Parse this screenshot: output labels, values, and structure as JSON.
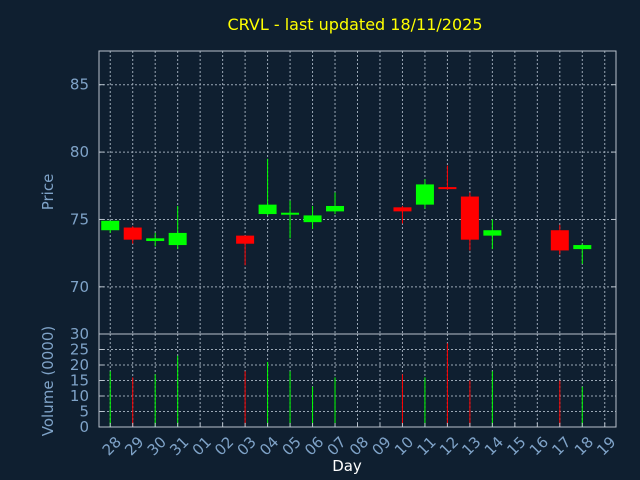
{
  "chart_data": {
    "type": "candlestick",
    "title": "CRVL - last updated 18/11/2025",
    "xlabel": "Day",
    "colors": {
      "background": "#0f1f30",
      "up": "#00ff00",
      "down": "#ff0000",
      "title": "#ffff00",
      "axis_text": "#7fa3c8"
    },
    "x_ticks": [
      "28",
      "29",
      "30",
      "31",
      "01",
      "02",
      "03",
      "04",
      "05",
      "06",
      "07",
      "08",
      "09",
      "10",
      "11",
      "12",
      "13",
      "14",
      "15",
      "16",
      "17",
      "18",
      "19"
    ],
    "price_panel": {
      "ylabel": "Price",
      "ylim": [
        66.5,
        87.5
      ],
      "yticks": [
        70,
        75,
        80,
        85
      ],
      "grid": true
    },
    "volume_panel": {
      "ylabel": "Volume (0000)",
      "ylim": [
        0,
        30
      ],
      "yticks": [
        0,
        5,
        10,
        15,
        20,
        25,
        30
      ],
      "grid": true
    },
    "candles": [
      {
        "day": "28",
        "open": 74.2,
        "close": 74.9,
        "high": 74.9,
        "low": 74.0,
        "volume": 18
      },
      {
        "day": "29",
        "open": 74.4,
        "close": 73.5,
        "high": 74.5,
        "low": 73.2,
        "volume": 16
      },
      {
        "day": "30",
        "open": 73.4,
        "close": 73.6,
        "high": 74.0,
        "low": 73.0,
        "volume": 17
      },
      {
        "day": "31",
        "open": 73.1,
        "close": 74.0,
        "high": 76.0,
        "low": 72.8,
        "volume": 23
      },
      {
        "day": "03",
        "open": 73.8,
        "close": 73.2,
        "high": 73.8,
        "low": 71.6,
        "volume": 18
      },
      {
        "day": "04",
        "open": 75.4,
        "close": 76.1,
        "high": 79.5,
        "low": 75.3,
        "volume": 21
      },
      {
        "day": "05",
        "open": 75.4,
        "close": 75.5,
        "high": 76.4,
        "low": 73.6,
        "volume": 18
      },
      {
        "day": "06",
        "open": 74.8,
        "close": 75.3,
        "high": 76.0,
        "low": 74.3,
        "volume": 13
      },
      {
        "day": "07",
        "open": 75.6,
        "close": 76.0,
        "high": 77.0,
        "low": 75.4,
        "volume": 16
      },
      {
        "day": "10",
        "open": 75.9,
        "close": 75.6,
        "high": 76.0,
        "low": 74.7,
        "volume": 17
      },
      {
        "day": "11",
        "open": 76.1,
        "close": 77.6,
        "high": 78.0,
        "low": 75.8,
        "volume": 16
      },
      {
        "day": "12",
        "open": 77.4,
        "close": 77.3,
        "high": 79.0,
        "low": 77.2,
        "volume": 27
      },
      {
        "day": "13",
        "open": 76.7,
        "close": 73.5,
        "high": 77.0,
        "low": 72.7,
        "volume": 15
      },
      {
        "day": "14",
        "open": 73.8,
        "close": 74.2,
        "high": 75.0,
        "low": 72.8,
        "volume": 18
      },
      {
        "day": "17",
        "open": 74.2,
        "close": 72.7,
        "high": 74.6,
        "low": 72.4,
        "volume": 15
      },
      {
        "day": "18",
        "open": 72.8,
        "close": 73.1,
        "high": 73.2,
        "low": 71.7,
        "volume": 13
      }
    ]
  }
}
